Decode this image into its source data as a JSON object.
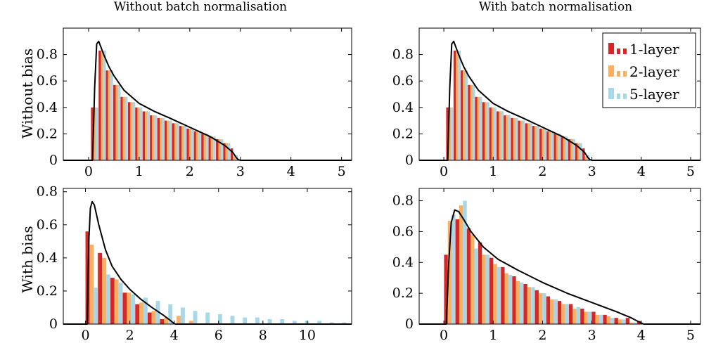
{
  "figure": {
    "col_titles": [
      "Without batch normalisation",
      "With batch normalisation"
    ],
    "row_labels": [
      "Without bias",
      "With bias"
    ]
  },
  "legend": {
    "placement": "top-right of top-right panel",
    "items": [
      {
        "label": "1-layer",
        "color": "#d62728"
      },
      {
        "label": "2-layer",
        "color": "#ffae60"
      },
      {
        "label": "5-layer",
        "color": "#a8d8e8"
      }
    ]
  },
  "chart_data": [
    {
      "id": "no-bias-no-bn",
      "type": "bar",
      "xlim": [
        -0.5,
        5.2
      ],
      "ylim": [
        0,
        1.0
      ],
      "xticks": [
        0,
        1,
        2,
        3,
        4,
        5
      ],
      "yticks": [
        0,
        0.2,
        0.4,
        0.6,
        0.8
      ],
      "bin_width": 0.145,
      "x": [
        0.12,
        0.27,
        0.41,
        0.56,
        0.7,
        0.85,
        0.99,
        1.14,
        1.28,
        1.43,
        1.57,
        1.72,
        1.86,
        2.01,
        2.15,
        2.3,
        2.44,
        2.59,
        2.73,
        2.88
      ],
      "series": [
        {
          "name": "1-layer",
          "values": [
            0.4,
            0.83,
            0.68,
            0.57,
            0.48,
            0.44,
            0.4,
            0.37,
            0.34,
            0.32,
            0.3,
            0.28,
            0.26,
            0.24,
            0.22,
            0.2,
            0.18,
            0.16,
            0.13,
            0.09
          ]
        },
        {
          "name": "2-layer",
          "values": [
            0.4,
            0.83,
            0.68,
            0.57,
            0.48,
            0.44,
            0.4,
            0.37,
            0.34,
            0.32,
            0.3,
            0.28,
            0.26,
            0.24,
            0.22,
            0.2,
            0.18,
            0.16,
            0.13,
            0.03
          ]
        },
        {
          "name": "5-layer",
          "values": [
            0.4,
            0.83,
            0.68,
            0.57,
            0.48,
            0.44,
            0.4,
            0.37,
            0.34,
            0.32,
            0.3,
            0.28,
            0.26,
            0.24,
            0.22,
            0.2,
            0.18,
            0.16,
            0.13,
            0.04
          ]
        }
      ],
      "curve": {
        "x": [
          0.08,
          0.12,
          0.16,
          0.2,
          0.25,
          0.3,
          0.4,
          0.5,
          0.7,
          1.0,
          1.3,
          1.6,
          2.0,
          2.4,
          2.7,
          2.85,
          2.92,
          2.96,
          3.0,
          5.2
        ],
        "y": [
          0,
          0.55,
          0.88,
          0.9,
          0.85,
          0.8,
          0.71,
          0.64,
          0.53,
          0.43,
          0.37,
          0.32,
          0.25,
          0.18,
          0.11,
          0.06,
          0.02,
          0.005,
          0,
          0
        ]
      }
    },
    {
      "id": "no-bias-bn",
      "type": "bar",
      "xlim": [
        -0.5,
        5.2
      ],
      "ylim": [
        0,
        1.0
      ],
      "xticks": [
        0,
        1,
        2,
        3,
        4,
        5
      ],
      "yticks": [
        0,
        0.2,
        0.4,
        0.6,
        0.8
      ],
      "bin_width": 0.145,
      "x": [
        0.12,
        0.27,
        0.41,
        0.56,
        0.7,
        0.85,
        0.99,
        1.14,
        1.28,
        1.43,
        1.57,
        1.72,
        1.86,
        2.01,
        2.15,
        2.3,
        2.44,
        2.59,
        2.73,
        2.88
      ],
      "series": [
        {
          "name": "1-layer",
          "values": [
            0.4,
            0.83,
            0.68,
            0.57,
            0.48,
            0.44,
            0.4,
            0.37,
            0.34,
            0.32,
            0.3,
            0.28,
            0.26,
            0.24,
            0.22,
            0.2,
            0.18,
            0.16,
            0.13,
            0.09
          ]
        },
        {
          "name": "2-layer",
          "values": [
            0.4,
            0.83,
            0.68,
            0.57,
            0.48,
            0.44,
            0.4,
            0.37,
            0.34,
            0.32,
            0.3,
            0.28,
            0.26,
            0.24,
            0.22,
            0.2,
            0.18,
            0.16,
            0.13,
            0.03
          ]
        },
        {
          "name": "5-layer",
          "values": [
            0.4,
            0.83,
            0.68,
            0.57,
            0.48,
            0.44,
            0.4,
            0.37,
            0.34,
            0.32,
            0.3,
            0.28,
            0.26,
            0.24,
            0.22,
            0.2,
            0.18,
            0.16,
            0.13,
            0.04
          ]
        }
      ],
      "curve": {
        "x": [
          0.08,
          0.12,
          0.16,
          0.2,
          0.25,
          0.3,
          0.4,
          0.5,
          0.7,
          1.0,
          1.3,
          1.6,
          2.0,
          2.4,
          2.7,
          2.85,
          2.92,
          2.96,
          3.0,
          5.2
        ],
        "y": [
          0,
          0.55,
          0.88,
          0.9,
          0.85,
          0.8,
          0.71,
          0.64,
          0.53,
          0.43,
          0.37,
          0.32,
          0.25,
          0.18,
          0.11,
          0.06,
          0.02,
          0.005,
          0,
          0
        ]
      }
    },
    {
      "id": "bias-no-bn",
      "type": "bar",
      "xlim": [
        -1,
        12
      ],
      "ylim": [
        0,
        0.82
      ],
      "xticks": [
        0,
        2,
        4,
        6,
        8,
        10
      ],
      "yticks": [
        0,
        0.2,
        0.4,
        0.6,
        0.8
      ],
      "bin_width": 0.56,
      "x": [
        0.28,
        0.84,
        1.4,
        1.96,
        2.52,
        3.08,
        3.64,
        4.2,
        4.76,
        5.32,
        5.88,
        6.44,
        7.0,
        7.56,
        8.12,
        8.68,
        9.24,
        9.8,
        10.36,
        10.92,
        11.48
      ],
      "series": [
        {
          "name": "1-layer",
          "values": [
            0.56,
            0.43,
            0.28,
            0.19,
            0.12,
            0.07,
            0.03,
            0,
            0,
            0,
            0,
            0,
            0,
            0,
            0,
            0,
            0,
            0,
            0,
            0,
            0
          ]
        },
        {
          "name": "2-layer",
          "values": [
            0.48,
            0.4,
            0.27,
            0.19,
            0.13,
            0.08,
            0.04,
            0.05,
            0.02,
            0,
            0,
            0,
            0,
            0,
            0,
            0,
            0,
            0,
            0,
            0,
            0
          ]
        },
        {
          "name": "5-layer",
          "values": [
            0.22,
            0.3,
            0.25,
            0.18,
            0.16,
            0.14,
            0.12,
            0.1,
            0.08,
            0.07,
            0.06,
            0.05,
            0.04,
            0.04,
            0.03,
            0.03,
            0.02,
            0.02,
            0.02,
            0.01,
            0.01
          ]
        }
      ],
      "curve": {
        "x": [
          0.08,
          0.15,
          0.22,
          0.3,
          0.4,
          0.6,
          0.9,
          1.2,
          1.6,
          2.0,
          2.5,
          3.0,
          3.5,
          3.8,
          3.95,
          4.05,
          12
        ],
        "y": [
          0,
          0.5,
          0.7,
          0.74,
          0.72,
          0.6,
          0.45,
          0.35,
          0.27,
          0.21,
          0.15,
          0.1,
          0.055,
          0.025,
          0.008,
          0,
          0
        ]
      }
    },
    {
      "id": "bias-bn",
      "type": "bar",
      "xlim": [
        -0.5,
        5.2
      ],
      "ylim": [
        0,
        0.88
      ],
      "xticks": [
        0,
        1,
        2,
        3,
        4,
        5
      ],
      "yticks": [
        0,
        0.2,
        0.4,
        0.6,
        0.8
      ],
      "bin_width": 0.23,
      "x": [
        0.12,
        0.35,
        0.58,
        0.81,
        1.04,
        1.27,
        1.5,
        1.73,
        1.96,
        2.19,
        2.42,
        2.65,
        2.88,
        3.11,
        3.34,
        3.57,
        3.8,
        4.03
      ],
      "series": [
        {
          "name": "1-layer",
          "values": [
            0.45,
            0.68,
            0.62,
            0.53,
            0.43,
            0.37,
            0.31,
            0.26,
            0.22,
            0.18,
            0.15,
            0.13,
            0.1,
            0.08,
            0.06,
            0.04,
            0.04,
            0.02
          ]
        },
        {
          "name": "2-layer",
          "values": [
            0.67,
            0.77,
            0.58,
            0.45,
            0.39,
            0.33,
            0.28,
            0.24,
            0.2,
            0.16,
            0.13,
            0.1,
            0.08,
            0.06,
            0.05,
            0.03,
            0.01,
            0
          ]
        },
        {
          "name": "5-layer",
          "values": [
            0.71,
            0.8,
            0.49,
            0.45,
            0.37,
            0.32,
            0.27,
            0.24,
            0.2,
            0.16,
            0.13,
            0.11,
            0.08,
            0.06,
            0.04,
            0.03,
            0.01,
            0
          ]
        }
      ],
      "curve": {
        "x": [
          0.05,
          0.1,
          0.15,
          0.22,
          0.3,
          0.4,
          0.55,
          0.8,
          1.1,
          1.5,
          2.0,
          2.5,
          3.0,
          3.5,
          3.8,
          3.95,
          4.05,
          5.2
        ],
        "y": [
          0,
          0.4,
          0.66,
          0.74,
          0.73,
          0.68,
          0.6,
          0.5,
          0.42,
          0.35,
          0.27,
          0.2,
          0.14,
          0.08,
          0.04,
          0.015,
          0,
          0
        ]
      }
    }
  ]
}
